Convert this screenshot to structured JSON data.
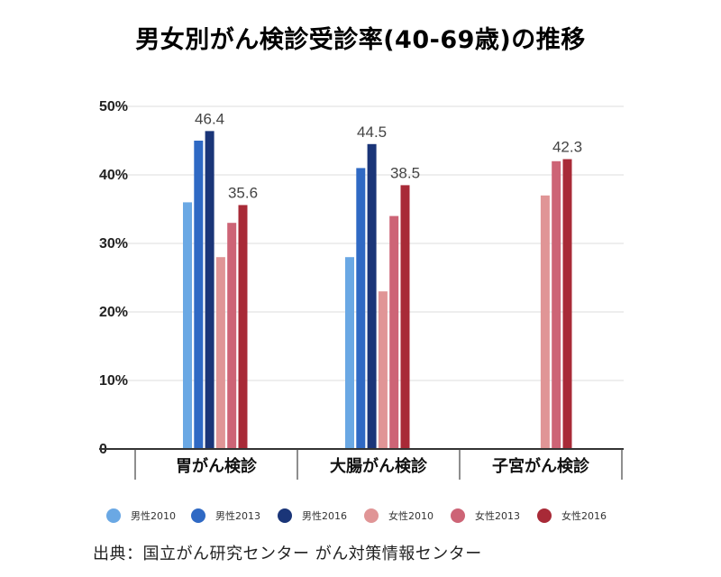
{
  "chart_data": {
    "type": "bar",
    "title": "男女別がん検診受診率(40-69歳)の推移",
    "categories": [
      "胃がん検診",
      "大腸がん検診",
      "子宮がん検診"
    ],
    "series": [
      {
        "name": "男性2010",
        "color": "#6aa8e4",
        "values": [
          36.0,
          28.0,
          null
        ]
      },
      {
        "name": "男性2013",
        "color": "#2f69c4",
        "values": [
          45.0,
          41.0,
          null
        ]
      },
      {
        "name": "男性2016",
        "color": "#1a3578",
        "values": [
          46.4,
          44.5,
          null
        ],
        "labels": [
          "46.4",
          "44.5",
          ""
        ]
      },
      {
        "name": "女性2010",
        "color": "#e09596",
        "values": [
          28.0,
          23.0,
          37.0
        ]
      },
      {
        "name": "女性2013",
        "color": "#cd6476",
        "values": [
          33.0,
          34.0,
          42.0
        ]
      },
      {
        "name": "女性2016",
        "color": "#a82a37",
        "values": [
          35.6,
          38.5,
          42.3
        ],
        "labels": [
          "35.6",
          "38.5",
          "42.3"
        ]
      }
    ],
    "ylim": [
      0,
      50
    ],
    "yticks": [
      0,
      10,
      20,
      30,
      40,
      50
    ],
    "ytick_labels": [
      "0",
      "10%",
      "20%",
      "30%",
      "40%",
      "50%"
    ],
    "xlabel": "",
    "ylabel": "",
    "grid": true,
    "legend_position": "bottom"
  },
  "source": "出典：国立がん研究センター がん対策情報センター"
}
